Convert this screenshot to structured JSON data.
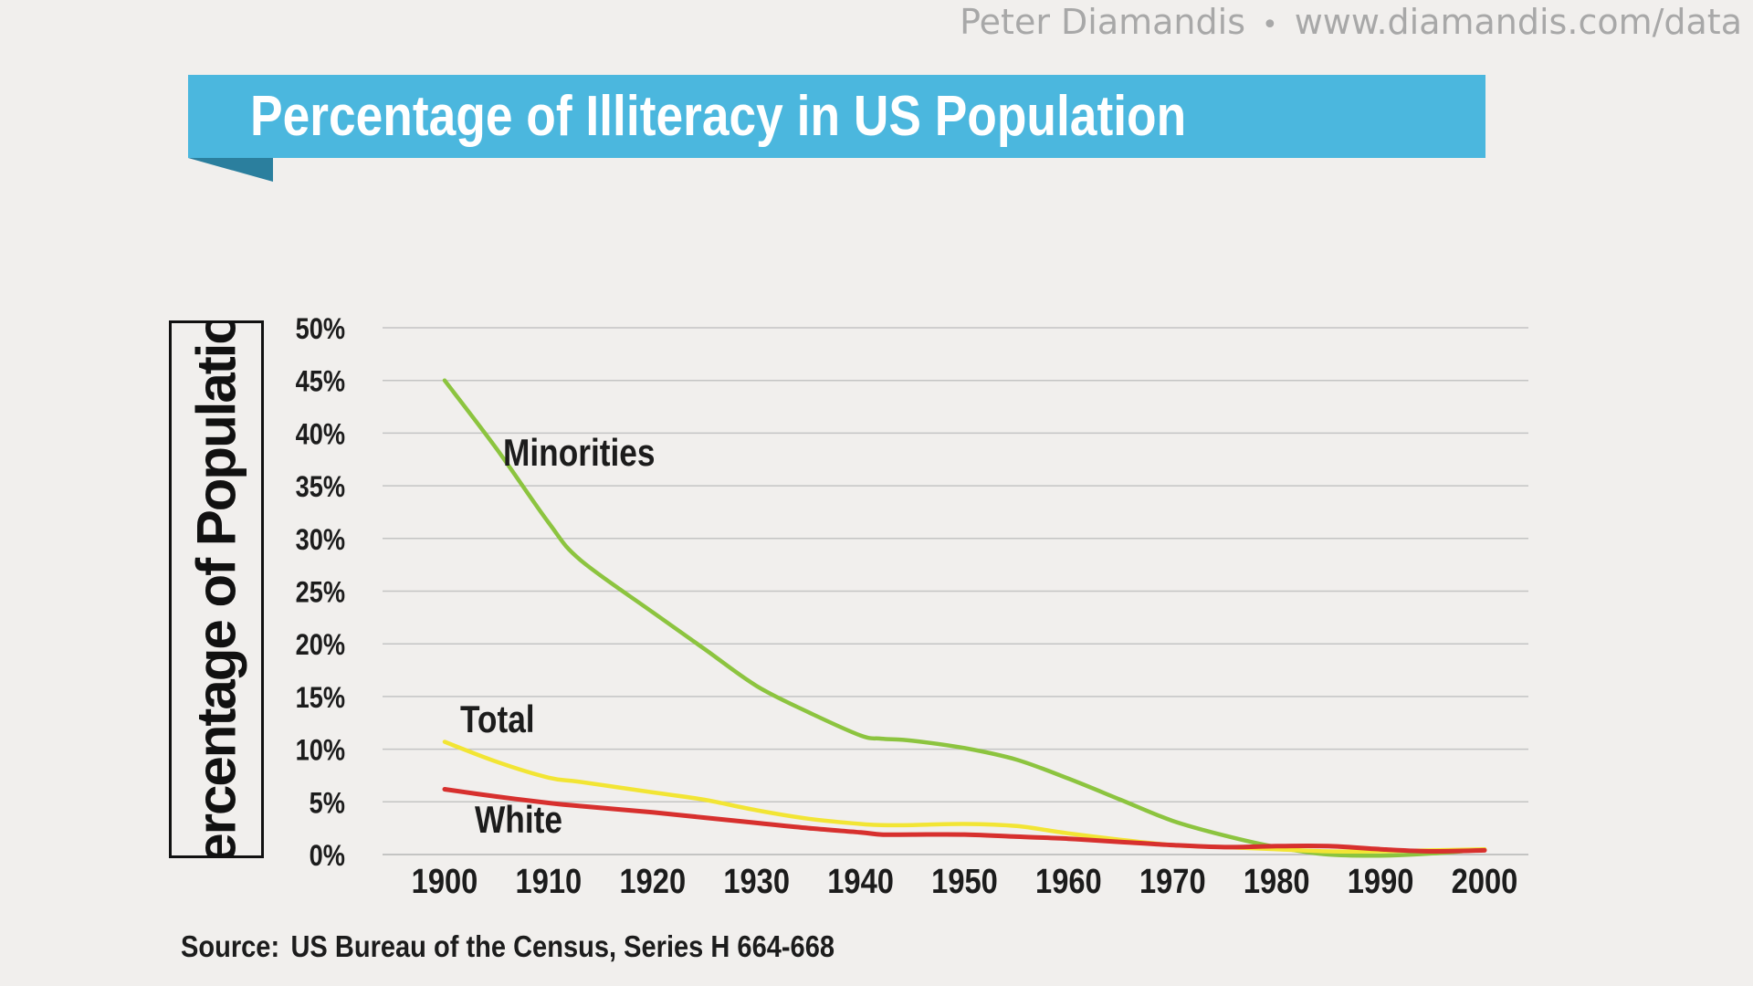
{
  "header": {
    "author": "Peter Diamandis",
    "separator": "•",
    "url": "www.diamandis.com/data"
  },
  "banner": {
    "color": "#4bb7de",
    "fold_color": "#2b7f9e"
  },
  "source": {
    "prefix": "Source:",
    "text": "US Bureau of the Census, Series H 664-668"
  },
  "chart_data": {
    "type": "line",
    "title": "Percentage of Illiteracy in US Population",
    "ylabel": "Percentage of Population",
    "xlabel": "",
    "x": [
      1900,
      1905,
      1910,
      1913,
      1920,
      1925,
      1930,
      1935,
      1940,
      1942,
      1945,
      1950,
      1955,
      1960,
      1965,
      1970,
      1975,
      1980,
      1985,
      1990,
      1995,
      2000
    ],
    "xticks": [
      1900,
      1910,
      1920,
      1930,
      1940,
      1950,
      1960,
      1970,
      1980,
      1990,
      2000
    ],
    "yticks": [
      0,
      5,
      10,
      15,
      20,
      25,
      30,
      35,
      40,
      45,
      50
    ],
    "ytick_labels": [
      "0%",
      "5%",
      "10%",
      "15%",
      "20%",
      "25%",
      "30%",
      "35%",
      "40%",
      "45%",
      "50%"
    ],
    "ylim": [
      0,
      50
    ],
    "xlim": [
      1895,
      2005
    ],
    "grid": true,
    "series": [
      {
        "name": "Minorities",
        "color": "#8cc43f",
        "values": [
          45,
          38.5,
          31.5,
          28,
          23,
          19.5,
          16,
          13.5,
          11.3,
          11,
          10.8,
          10.1,
          9,
          7.2,
          5.2,
          3.2,
          1.8,
          0.7,
          0,
          -0.1,
          0.1,
          0.5
        ]
      },
      {
        "name": "Total",
        "color": "#f2e534",
        "values": [
          10.7,
          8.8,
          7.3,
          6.9,
          5.9,
          5.2,
          4.2,
          3.4,
          2.9,
          2.8,
          2.8,
          2.9,
          2.7,
          2.0,
          1.4,
          0.9,
          0.7,
          0.5,
          0.3,
          0.3,
          0.4,
          0.5
        ]
      },
      {
        "name": "White",
        "color": "#d7302e",
        "values": [
          6.2,
          5.5,
          4.9,
          4.6,
          4.0,
          3.5,
          3.0,
          2.5,
          2.1,
          1.9,
          1.9,
          1.9,
          1.7,
          1.5,
          1.2,
          0.9,
          0.7,
          0.8,
          0.8,
          0.5,
          0.3,
          0.4
        ]
      }
    ]
  }
}
